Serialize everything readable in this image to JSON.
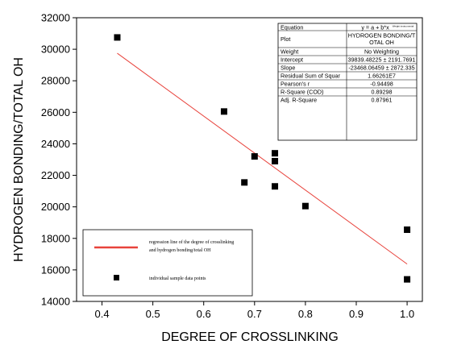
{
  "chart_data": {
    "type": "scatter",
    "xlabel": "DEGREE OF CROSSLINKING",
    "ylabel": "HYDROGEN BONDING/TOTAL OH",
    "xlim": [
      0.35,
      1.03
    ],
    "ylim": [
      14000,
      32000
    ],
    "x_ticks": [
      "0.4",
      "0.5",
      "0.6",
      "0.7",
      "0.8",
      "0.9",
      "1.0"
    ],
    "y_ticks": [
      "14000",
      "16000",
      "18000",
      "20000",
      "22000",
      "24000",
      "26000",
      "28000",
      "30000",
      "32000"
    ],
    "series": [
      {
        "name": "individual sample data points",
        "type": "scatter",
        "points": [
          {
            "x": 0.43,
            "y": 30750
          },
          {
            "x": 0.64,
            "y": 26050
          },
          {
            "x": 0.68,
            "y": 21550
          },
          {
            "x": 0.7,
            "y": 23200
          },
          {
            "x": 0.74,
            "y": 23400
          },
          {
            "x": 0.74,
            "y": 22900
          },
          {
            "x": 0.74,
            "y": 21300
          },
          {
            "x": 0.8,
            "y": 20050
          },
          {
            "x": 1.0,
            "y": 18550
          },
          {
            "x": 1.0,
            "y": 15400
          }
        ]
      },
      {
        "name": "regression line of the degree of crosslinking and hydrogen bonding/total OH",
        "type": "line",
        "color": "#e8433c",
        "x": [
          0.43,
          1.0
        ],
        "y": [
          29748,
          16371
        ]
      }
    ],
    "stats_table": {
      "rows": [
        {
          "label": "Equation",
          "value": "y = a + b*x",
          "note": "Weight instrumental"
        },
        {
          "label": "Plot",
          "value": "HYDROGEN BONDING/TOTAL OH"
        },
        {
          "label": "Weight",
          "value": "No Weighting"
        },
        {
          "label": "Intercept",
          "value": "39839.48225 ± 2191.7691"
        },
        {
          "label": "Slope",
          "value": "-23468.06459 ± 2872.335"
        },
        {
          "label": "Residual Sum of Squar",
          "value": "1.66261E7"
        },
        {
          "label": "Pearson's r",
          "value": "-0.94498"
        },
        {
          "label": "R-Square (COD)",
          "value": "0.89298"
        },
        {
          "label": "Adj. R-Square",
          "value": "0.87961"
        }
      ]
    },
    "legend": {
      "placement": "bottom-left",
      "line_label_1": "regression line of the degree of crosslinking",
      "line_label_2": "and hydrogen bonding/total OH",
      "points_label": "individual sample data points"
    },
    "grid": false
  }
}
